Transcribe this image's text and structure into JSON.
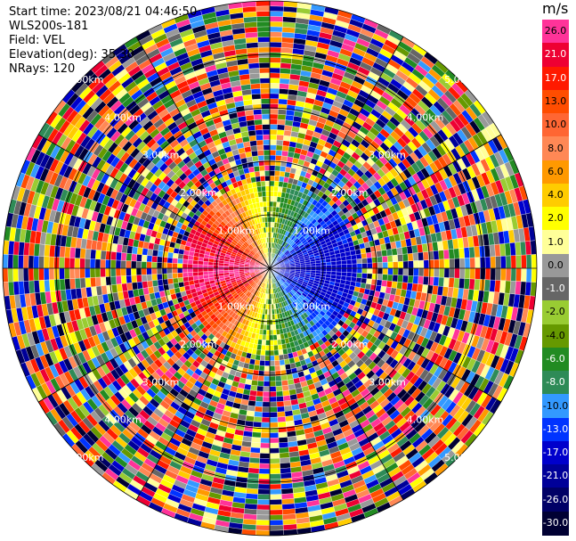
{
  "header": {
    "start_time": "Start time: 2023/08/21 04:46:50",
    "instrument": "WLS200s-181",
    "field": "Field: VEL",
    "elevation": "Elevation(deg): 35.30",
    "nrays": "NRays: 120"
  },
  "colorbar": {
    "unit": "m/s",
    "levels": [
      {
        "label": "26.0",
        "color": "#ff3399"
      },
      {
        "label": "21.0",
        "color": "#ee0033"
      },
      {
        "label": "17.0",
        "color": "#ff1a00"
      },
      {
        "label": "13.0",
        "color": "#ff4d00"
      },
      {
        "label": "10.0",
        "color": "#ff6633"
      },
      {
        "label": "8.0",
        "color": "#ff8855"
      },
      {
        "label": "6.0",
        "color": "#ff9900"
      },
      {
        "label": "4.0",
        "color": "#ffcc00"
      },
      {
        "label": "2.0",
        "color": "#ffff00"
      },
      {
        "label": "1.0",
        "color": "#ffff99"
      },
      {
        "label": "0.0",
        "color": "#999999"
      },
      {
        "label": "-1.0",
        "color": "#666666"
      },
      {
        "label": "-2.0",
        "color": "#99cc33"
      },
      {
        "label": "-4.0",
        "color": "#669900"
      },
      {
        "label": "-6.0",
        "color": "#228b22"
      },
      {
        "label": "-8.0",
        "color": "#2e8b57"
      },
      {
        "label": "-10.0",
        "color": "#3399ff"
      },
      {
        "label": "-13.0",
        "color": "#0033ff"
      },
      {
        "label": "-17.0",
        "color": "#0000cc"
      },
      {
        "label": "-21.0",
        "color": "#000099"
      },
      {
        "label": "-26.0",
        "color": "#000066"
      },
      {
        "label": "-30.0",
        "color": "#000033"
      }
    ]
  },
  "chart_data": {
    "type": "heatmap",
    "projection": "polar",
    "nrays": 120,
    "range_rings_km": [
      1.0,
      2.0,
      3.0,
      4.0,
      5.0
    ],
    "range_labels": [
      "1.00km",
      "2.00km",
      "3.00km",
      "4.00km",
      "5.00km"
    ],
    "radial_lines": true,
    "valid_data_range_km": 1.7,
    "data_pattern": "west sector positive (warm colors), east sector negative (cool colors), beyond ~1.7 km noisy random values",
    "velocity_range": [
      -30.0,
      26.0
    ]
  }
}
